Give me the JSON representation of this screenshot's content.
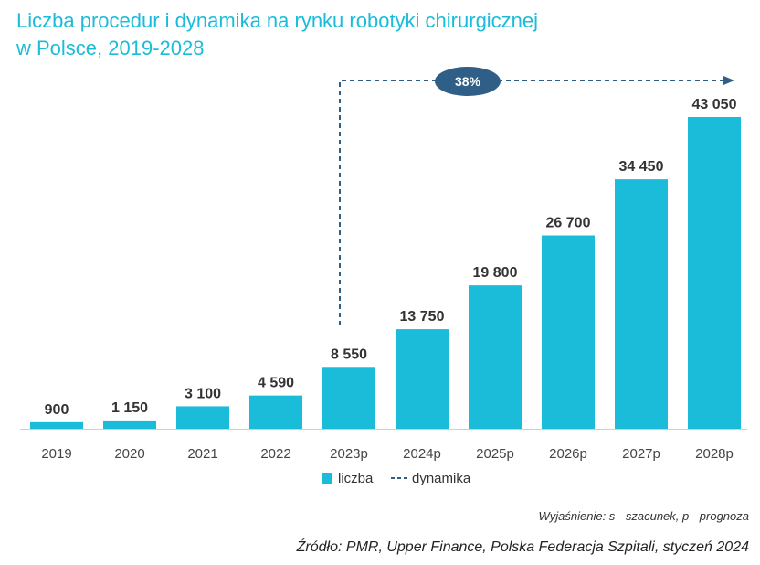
{
  "title": {
    "line1": "Liczba procedur i dynamika na rynku robotyki chirurgicznej",
    "line2": "w Polsce, 2019-2028"
  },
  "chart_data": {
    "type": "bar",
    "categories": [
      "2019",
      "2020",
      "2021",
      "2022",
      "2023p",
      "2024p",
      "2025p",
      "2026p",
      "2027p",
      "2028p"
    ],
    "series": [
      {
        "name": "liczba",
        "values": [
          900,
          1150,
          3100,
          4590,
          8550,
          13750,
          19800,
          26700,
          34450,
          43050
        ],
        "labels": [
          "900",
          "1 150",
          "3 100",
          "4 590",
          "8 550",
          "13 750",
          "19 800",
          "26 700",
          "34 450",
          "43 050"
        ]
      }
    ],
    "legend": [
      {
        "name": "liczba",
        "kind": "bar"
      },
      {
        "name": "dynamika",
        "kind": "dashed-line"
      }
    ],
    "annotation": {
      "label": "38%",
      "from": "2023p",
      "to": "2028p"
    },
    "ylim": [
      0,
      43050
    ],
    "grid": false,
    "legend_position": "bottom"
  },
  "colors": {
    "bar": "#1bbcd9",
    "title": "#1bbcd9",
    "dynamika": "#2f5f86",
    "badge": "#2f5f86"
  },
  "footer": {
    "note": "Wyjaśnienie: s - szacunek, p - prognoza",
    "source": "Źródło: PMR, Upper Finance, Polska Federacja Szpitali, styczeń 2024"
  }
}
